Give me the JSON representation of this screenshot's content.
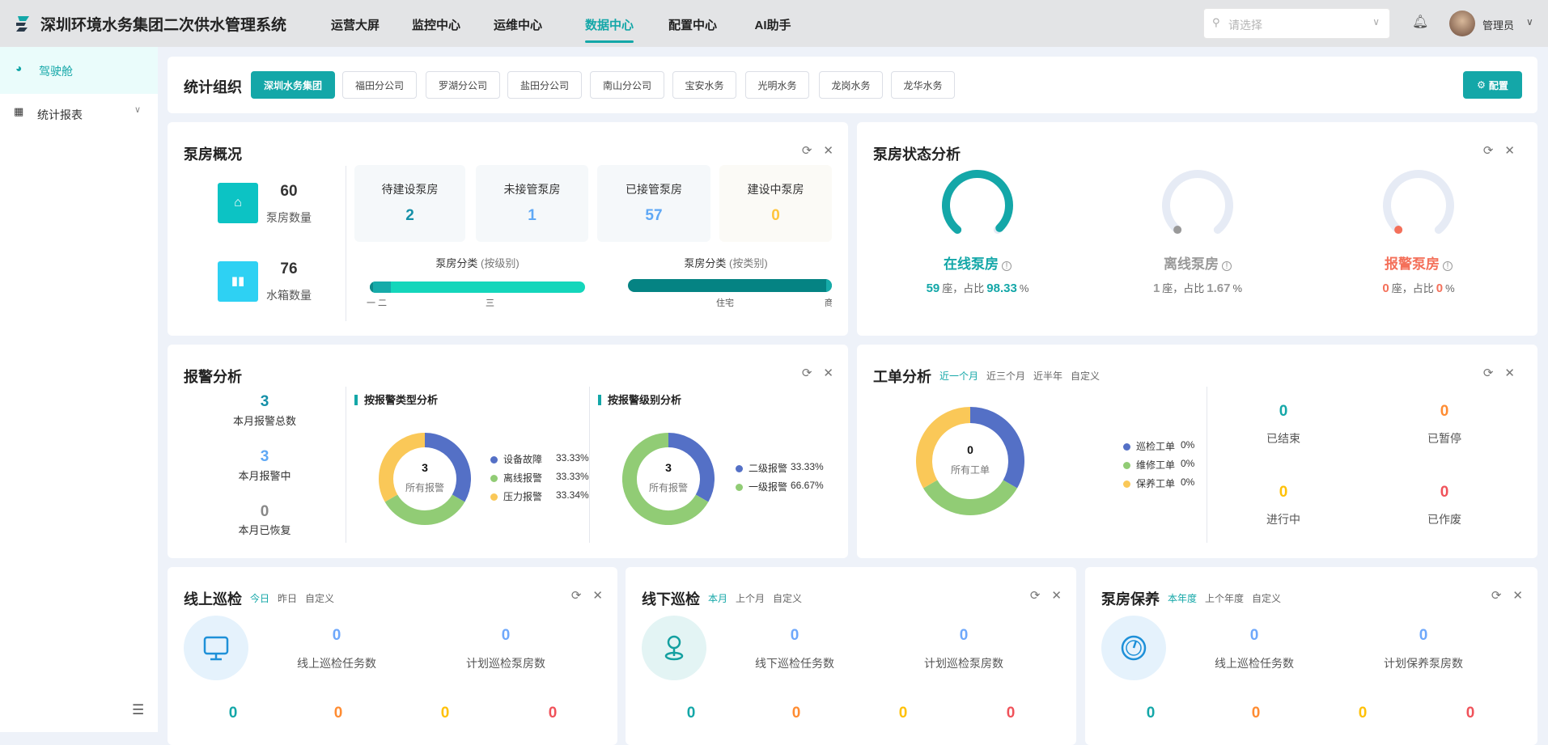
{
  "header": {
    "title": "深圳环境水务集团二次供水管理系统",
    "nav": [
      "运营大屏",
      "监控中心",
      "运维中心",
      "数据中心",
      "配置中心",
      "AI助手"
    ],
    "active_nav": "数据中心",
    "select_placeholder": "请选择",
    "user": "管理员"
  },
  "sidebar": {
    "items": [
      {
        "label": "驾驶舱",
        "icon": "dashboard-icon",
        "active": true
      },
      {
        "label": "统计报表",
        "icon": "report-icon"
      }
    ]
  },
  "org": {
    "title": "统计组织",
    "buttons": [
      "深圳水务集团",
      "福田分公司",
      "罗湖分公司",
      "盐田分公司",
      "南山分公司",
      "宝安水务",
      "光明水务",
      "龙岗水务",
      "龙华水务"
    ],
    "active": "深圳水务集团",
    "config_label": "配置"
  },
  "colors": {
    "accent": "#14a7a8",
    "blue": "#5470c6",
    "green": "#91cc75",
    "yellow": "#fac858",
    "red": "#f56c6c",
    "orange": "#ff8c32"
  },
  "overview": {
    "title": "泵房概况",
    "pump_count": "60",
    "pump_label": "泵房数量",
    "tank_count": "76",
    "tank_label": "水箱数量",
    "tiles": [
      {
        "label": "待建设泵房",
        "value": "2"
      },
      {
        "label": "未接管泵房",
        "value": "1"
      },
      {
        "label": "已接管泵房",
        "value": "57"
      },
      {
        "label": "建设中泵房",
        "value": "0"
      }
    ],
    "bar_level": {
      "title": "泵房分类",
      "paren": "(按级别)",
      "labels": [
        "一",
        "二",
        "三"
      ]
    },
    "bar_type": {
      "title": "泵房分类",
      "paren": "(按类别)",
      "labels": [
        "住宅",
        "商"
      ]
    }
  },
  "status": {
    "title": "泵房状态分析",
    "items": [
      {
        "label": "在线泵房",
        "count": "59",
        "unit": "座，占比",
        "pct": "98.33",
        "pct_unit": "%",
        "fraction": 0.9833,
        "color": "#14a7a8"
      },
      {
        "label": "离线泵房",
        "count": "1",
        "unit": "座，占比",
        "pct": "1.67",
        "pct_unit": "%",
        "fraction": 0.0167,
        "color": "#999999"
      },
      {
        "label": "报警泵房",
        "count": "0",
        "unit": "座，占比",
        "pct": "0",
        "pct_unit": "%",
        "fraction": 0,
        "color": "#f4705a"
      }
    ]
  },
  "alarm": {
    "title": "报警分析",
    "stats": [
      {
        "value": "3",
        "label": "本月报警总数"
      },
      {
        "value": "3",
        "label": "本月报警中"
      },
      {
        "value": "0",
        "label": "本月已恢复"
      }
    ],
    "type_title": "按报警类型分析",
    "level_title": "按报警级别分析"
  },
  "workorder": {
    "title": "工单分析",
    "tabs": [
      "近一个月",
      "近三个月",
      "近半年",
      "自定义"
    ],
    "stats": [
      {
        "value": "0",
        "label": "已结束"
      },
      {
        "value": "0",
        "label": "已暂停"
      },
      {
        "value": "0",
        "label": "进行中"
      },
      {
        "value": "0",
        "label": "已作废"
      }
    ]
  },
  "chart_data": [
    {
      "type": "pie",
      "name": "alarm-type",
      "center_value": "3",
      "center_label": "所有报警",
      "categories": [
        "设备故障",
        "离线报警",
        "压力报警"
      ],
      "values": [
        33.33,
        33.33,
        33.34
      ],
      "labels": [
        "33.33%",
        "33.33%",
        "33.34%"
      ],
      "colors": [
        "#5470c6",
        "#91cc75",
        "#fac858"
      ]
    },
    {
      "type": "pie",
      "name": "alarm-level",
      "center_value": "3",
      "center_label": "所有报警",
      "categories": [
        "二级报警",
        "一级报警"
      ],
      "values": [
        33.33,
        66.67
      ],
      "labels": [
        "33.33%",
        "66.67%"
      ],
      "colors": [
        "#5470c6",
        "#91cc75"
      ]
    },
    {
      "type": "pie",
      "name": "workorder",
      "center_value": "0",
      "center_label": "所有工单",
      "categories": [
        "巡检工单",
        "维修工单",
        "保养工单"
      ],
      "values": [
        0,
        0,
        0
      ],
      "labels": [
        "0%",
        "0%",
        "0%"
      ],
      "colors": [
        "#5470c6",
        "#91cc75",
        "#fac858"
      ]
    }
  ],
  "bottom": [
    {
      "title": "线上巡检",
      "tabs": [
        "今日",
        "昨日",
        "自定义"
      ],
      "icon": "monitor-icon",
      "v1": "0",
      "l1": "线上巡检任务数",
      "v2": "0",
      "l2": "计划巡检泵房数",
      "row": [
        "0",
        "0",
        "0",
        "0"
      ]
    },
    {
      "title": "线下巡检",
      "tabs": [
        "本月",
        "上个月",
        "自定义"
      ],
      "icon": "location-pin-icon",
      "v1": "0",
      "l1": "线下巡检任务数",
      "v2": "0",
      "l2": "计划巡检泵房数",
      "row": [
        "0",
        "0",
        "0",
        "0"
      ]
    },
    {
      "title": "泵房保养",
      "tabs": [
        "本年度",
        "上个年度",
        "自定义"
      ],
      "icon": "gauge-icon",
      "v1": "0",
      "l1": "线上巡检任务数",
      "v2": "0",
      "l2": "计划保养泵房数",
      "row": [
        "0",
        "0",
        "0",
        "0"
      ]
    }
  ]
}
